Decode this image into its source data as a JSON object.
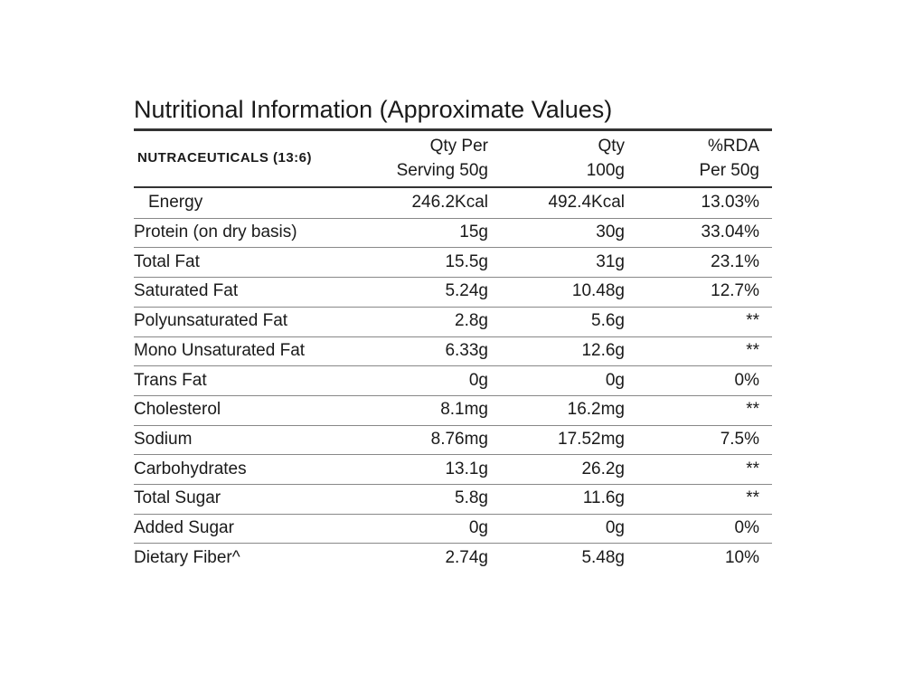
{
  "title": "Nutritional Information (Approximate Values)",
  "table": {
    "header": [
      [
        "NUTRACEUTICALS (13:6)"
      ],
      [
        "Qty Per",
        "Serving 50g"
      ],
      [
        "Qty",
        "100g"
      ],
      [
        "%RDA",
        "Per 50g"
      ]
    ],
    "rows": [
      [
        "Energy",
        "246.2Kcal",
        "492.4Kcal",
        "13.03%"
      ],
      [
        "Protein (on dry basis)",
        "15g",
        "30g",
        "33.04%"
      ],
      [
        "Total Fat",
        "15.5g",
        "31g",
        "23.1%"
      ],
      [
        "Saturated Fat",
        "5.24g",
        "10.48g",
        "12.7%"
      ],
      [
        "Polyunsaturated Fat",
        "2.8g",
        "5.6g",
        "**"
      ],
      [
        "Mono Unsaturated Fat",
        "6.33g",
        "12.6g",
        "**"
      ],
      [
        "Trans Fat",
        "0g",
        "0g",
        "0%"
      ],
      [
        "Cholesterol",
        "8.1mg",
        "16.2mg",
        "**"
      ],
      [
        "Sodium",
        "8.76mg",
        "17.52mg",
        "7.5%"
      ],
      [
        "Carbohydrates",
        "13.1g",
        "26.2g",
        "**"
      ],
      [
        "Total Sugar",
        "5.8g",
        "11.6g",
        "**"
      ],
      [
        "Added Sugar",
        "0g",
        "0g",
        "0%"
      ],
      [
        "Dietary Fiber^",
        "2.74g",
        "5.48g",
        "10%"
      ]
    ]
  }
}
